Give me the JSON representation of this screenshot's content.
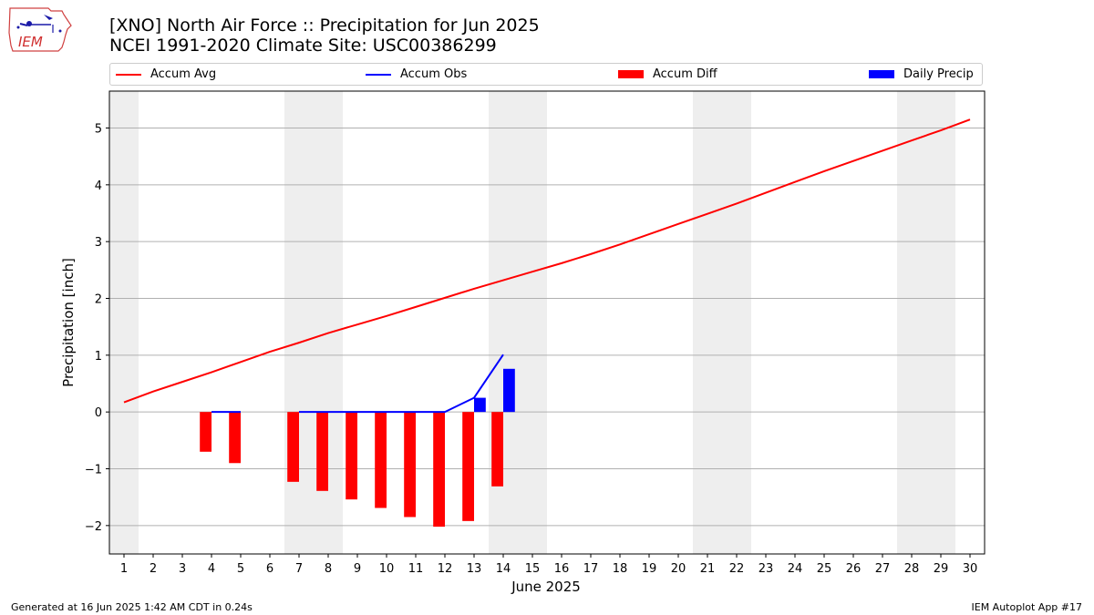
{
  "logo": {
    "text": "IEM"
  },
  "title": {
    "line1": "[XNO] North Air Force :: Precipitation for Jun 2025",
    "line2": "NCEI 1991-2020 Climate Site: USC00386299"
  },
  "legend": {
    "accum_avg": "Accum Avg",
    "accum_obs": "Accum Obs",
    "accum_diff": "Accum Diff",
    "daily_precip": "Daily Precip"
  },
  "colors": {
    "avg": "#ff0000",
    "obs": "#0000ff",
    "diff": "#ff0000",
    "precip": "#0000ff",
    "weekend": "#eeeeee",
    "grid": "#b0b0b0"
  },
  "footer": {
    "generated": "Generated at 16 Jun 2025 1:42 AM CDT in 0.24s",
    "app": "IEM Autoplot App #17"
  },
  "chart_data": {
    "type": "bar",
    "xlabel": "June 2025",
    "ylabel": "Precipitation [inch]",
    "xlim": [
      0.5,
      30.5
    ],
    "ylim": [
      -2.5,
      5.65
    ],
    "yticks": [
      -2,
      -1,
      0,
      1,
      2,
      3,
      4,
      5
    ],
    "ytick_labels": [
      "−2",
      "−1",
      "0",
      "1",
      "2",
      "3",
      "4",
      "5"
    ],
    "xticks": [
      1,
      2,
      3,
      4,
      5,
      6,
      7,
      8,
      9,
      10,
      11,
      12,
      13,
      14,
      15,
      16,
      17,
      18,
      19,
      20,
      21,
      22,
      23,
      24,
      25,
      26,
      27,
      28,
      29,
      30
    ],
    "grid": "y",
    "weekend_spans": [
      [
        0.5,
        1.5
      ],
      [
        6.5,
        8.5
      ],
      [
        13.5,
        15.5
      ],
      [
        20.5,
        22.5
      ],
      [
        27.5,
        29.5
      ]
    ],
    "series": [
      {
        "name": "Accum Avg",
        "kind": "line",
        "x": [
          1,
          2,
          3,
          4,
          5,
          6,
          7,
          8,
          9,
          10,
          11,
          12,
          13,
          14,
          15,
          16,
          17,
          18,
          19,
          20,
          21,
          22,
          23,
          24,
          25,
          26,
          27,
          28,
          29,
          30
        ],
        "values": [
          0.17,
          0.36,
          0.53,
          0.7,
          0.88,
          1.06,
          1.22,
          1.39,
          1.54,
          1.69,
          1.85,
          2.01,
          2.17,
          2.32,
          2.47,
          2.62,
          2.78,
          2.95,
          3.13,
          3.31,
          3.49,
          3.67,
          3.86,
          4.05,
          4.24,
          4.42,
          4.6,
          4.78,
          4.96,
          5.15
        ]
      },
      {
        "name": "Accum Obs",
        "kind": "line",
        "segments": [
          {
            "x": [
              4,
              5
            ],
            "values": [
              0,
              0
            ]
          },
          {
            "x": [
              7,
              8,
              9,
              10,
              11,
              12,
              13,
              14
            ],
            "values": [
              0,
              0,
              0,
              0,
              0,
              0,
              0.25,
              1.01
            ]
          }
        ]
      },
      {
        "name": "Accum Diff",
        "kind": "bar",
        "x": [
          4,
          5,
          7,
          8,
          9,
          10,
          11,
          12,
          13,
          14
        ],
        "values": [
          -0.7,
          -0.9,
          -1.23,
          -1.39,
          -1.54,
          -1.69,
          -1.85,
          -2.02,
          -1.92,
          -1.31
        ]
      },
      {
        "name": "Daily Precip",
        "kind": "bar",
        "x": [
          13,
          14
        ],
        "values": [
          0.25,
          0.76
        ]
      }
    ]
  }
}
